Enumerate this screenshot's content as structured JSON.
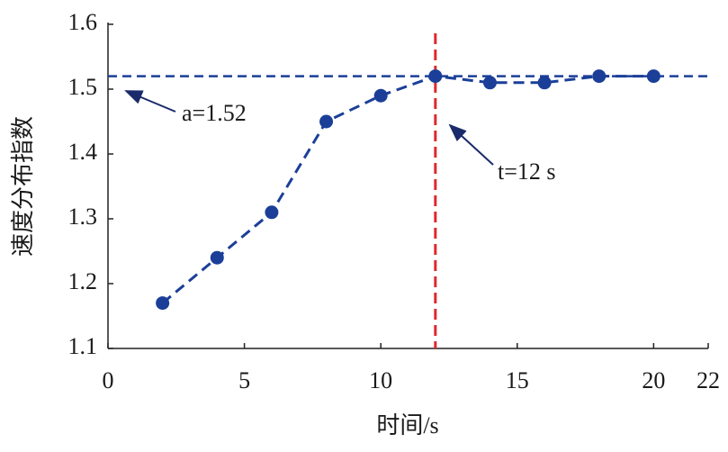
{
  "chart_data": {
    "type": "line",
    "x_label": "时间/s",
    "y_label": "速度分布指数",
    "x": [
      2,
      4,
      6,
      8,
      10,
      12,
      14,
      16,
      18,
      20
    ],
    "series": [
      {
        "color": "#1b3f98",
        "values": [
          1.17,
          1.24,
          1.31,
          1.45,
          1.49,
          1.52,
          1.51,
          1.51,
          1.52,
          1.52
        ]
      }
    ],
    "xlim": [
      0,
      22
    ],
    "xticks": [
      0,
      5,
      10,
      15,
      20,
      22
    ],
    "ylim": [
      1.1,
      1.6
    ],
    "yticks": [
      1.1,
      1.2,
      1.3,
      1.4,
      1.5,
      1.6
    ],
    "reference_lines": [
      {
        "axis": "y",
        "value": 1.52,
        "color": "#1b3f98"
      },
      {
        "axis": "x",
        "value": 12,
        "color": "#e0282e"
      }
    ],
    "annotations": [
      "a=1.52",
      "t=12 s"
    ]
  }
}
